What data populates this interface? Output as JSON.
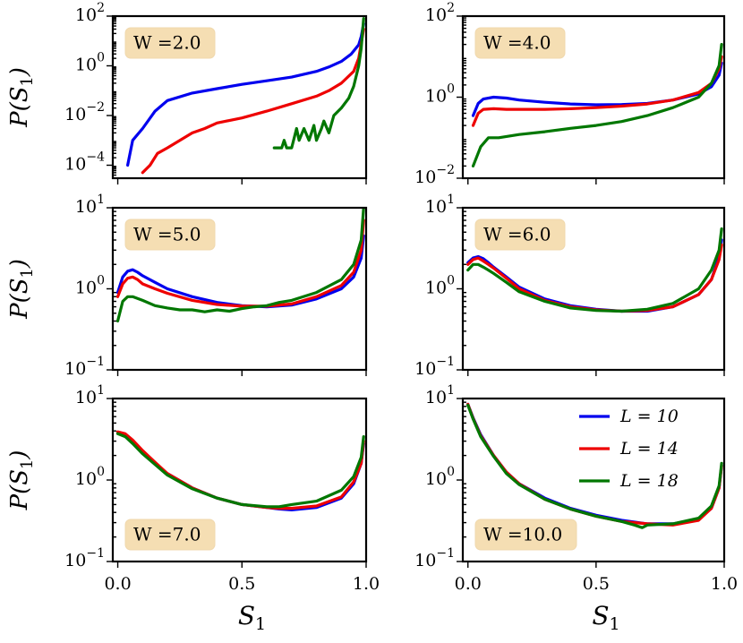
{
  "chart_data": [
    {
      "type": "line",
      "yscale": "log",
      "ylim": [
        3e-05,
        100
      ],
      "xlim": [
        -0.02,
        1.0
      ],
      "badge": "W =2.0",
      "badge_position": "top-left",
      "ylabel": "P(S1)",
      "xlabel": "",
      "yticks": [
        {
          "value": 100,
          "label": "10^2"
        },
        {
          "value": 1,
          "label": "10^0"
        },
        {
          "value": 0.01,
          "label": "10^-2"
        },
        {
          "value": 0.0001,
          "label": "10^-4"
        }
      ],
      "xticks": [],
      "series": [
        {
          "name": "L = 10",
          "x": [
            0.04,
            0.06,
            0.1,
            0.15,
            0.2,
            0.3,
            0.4,
            0.5,
            0.6,
            0.7,
            0.8,
            0.85,
            0.9,
            0.94,
            0.97,
            0.98,
            0.99
          ],
          "y": [
            0.0001,
            0.001,
            0.003,
            0.015,
            0.04,
            0.08,
            0.12,
            0.18,
            0.25,
            0.35,
            0.6,
            0.9,
            1.5,
            3,
            7,
            15,
            50
          ]
        },
        {
          "name": "L = 14",
          "x": [
            0.1,
            0.13,
            0.16,
            0.2,
            0.25,
            0.3,
            0.35,
            0.4,
            0.5,
            0.6,
            0.7,
            0.8,
            0.85,
            0.9,
            0.95,
            0.97,
            0.99
          ],
          "y": [
            5e-05,
            0.0001,
            0.0003,
            0.0005,
            0.001,
            0.002,
            0.003,
            0.005,
            0.008,
            0.015,
            0.03,
            0.06,
            0.1,
            0.2,
            0.6,
            2,
            30
          ]
        },
        {
          "name": "L = 18",
          "x": [
            0.63,
            0.66,
            0.67,
            0.68,
            0.7,
            0.72,
            0.73,
            0.75,
            0.77,
            0.79,
            0.8,
            0.82,
            0.83,
            0.85,
            0.87,
            0.9,
            0.93,
            0.95,
            0.97,
            0.98,
            0.99
          ],
          "y": [
            0.0005,
            0.0005,
            0.001,
            0.0005,
            0.0005,
            0.003,
            0.001,
            0.003,
            0.001,
            0.004,
            0.001,
            0.003,
            0.006,
            0.002,
            0.01,
            0.02,
            0.05,
            0.15,
            1.0,
            5,
            80
          ]
        }
      ]
    },
    {
      "type": "line",
      "yscale": "log",
      "ylim": [
        0.01,
        100
      ],
      "xlim": [
        -0.02,
        1.0
      ],
      "badge": "W =4.0",
      "badge_position": "top-left",
      "ylabel": "",
      "xlabel": "",
      "yticks": [
        {
          "value": 100,
          "label": "10^2"
        },
        {
          "value": 1,
          "label": "10^0"
        },
        {
          "value": 0.01,
          "label": "10^-2"
        }
      ],
      "xticks": [],
      "series": [
        {
          "name": "L = 10",
          "x": [
            0.02,
            0.04,
            0.06,
            0.1,
            0.15,
            0.2,
            0.3,
            0.4,
            0.5,
            0.6,
            0.7,
            0.8,
            0.9,
            0.95,
            0.98,
            0.99
          ],
          "y": [
            0.35,
            0.7,
            0.9,
            1.0,
            0.95,
            0.85,
            0.75,
            0.68,
            0.65,
            0.66,
            0.7,
            0.85,
            1.2,
            1.8,
            3.5,
            7
          ]
        },
        {
          "name": "L = 14",
          "x": [
            0.02,
            0.04,
            0.06,
            0.1,
            0.15,
            0.2,
            0.3,
            0.4,
            0.5,
            0.6,
            0.7,
            0.8,
            0.9,
            0.95,
            0.98,
            0.99
          ],
          "y": [
            0.2,
            0.4,
            0.5,
            0.52,
            0.5,
            0.5,
            0.5,
            0.52,
            0.55,
            0.6,
            0.68,
            0.85,
            1.3,
            2.2,
            5,
            10
          ]
        },
        {
          "name": "L = 18",
          "x": [
            0.02,
            0.05,
            0.08,
            0.12,
            0.2,
            0.3,
            0.4,
            0.5,
            0.6,
            0.7,
            0.8,
            0.9,
            0.95,
            0.98,
            0.99
          ],
          "y": [
            0.02,
            0.06,
            0.1,
            0.1,
            0.12,
            0.14,
            0.17,
            0.2,
            0.25,
            0.35,
            0.55,
            1.0,
            2.2,
            6,
            20
          ]
        }
      ]
    },
    {
      "type": "line",
      "yscale": "log",
      "ylim": [
        0.1,
        10
      ],
      "xlim": [
        -0.02,
        1.0
      ],
      "badge": "W =5.0",
      "badge_position": "top-left",
      "ylabel": "P(S1)",
      "xlabel": "",
      "yticks": [
        {
          "value": 10,
          "label": "10^1"
        },
        {
          "value": 1,
          "label": "10^0"
        },
        {
          "value": 0.1,
          "label": "10^-1"
        }
      ],
      "xticks": [],
      "series": [
        {
          "name": "L = 10",
          "x": [
            0.0,
            0.02,
            0.04,
            0.06,
            0.08,
            0.1,
            0.15,
            0.2,
            0.3,
            0.4,
            0.5,
            0.6,
            0.7,
            0.8,
            0.9,
            0.95,
            0.98,
            0.99
          ],
          "y": [
            0.9,
            1.4,
            1.65,
            1.72,
            1.6,
            1.45,
            1.2,
            1.0,
            0.8,
            0.68,
            0.62,
            0.6,
            0.63,
            0.75,
            1.0,
            1.4,
            2.4,
            4.5
          ]
        },
        {
          "name": "L = 14",
          "x": [
            0.0,
            0.02,
            0.04,
            0.06,
            0.08,
            0.1,
            0.15,
            0.2,
            0.3,
            0.4,
            0.5,
            0.6,
            0.7,
            0.8,
            0.9,
            0.95,
            0.98,
            0.99
          ],
          "y": [
            0.8,
            1.15,
            1.35,
            1.4,
            1.3,
            1.15,
            1.0,
            0.88,
            0.72,
            0.64,
            0.61,
            0.61,
            0.65,
            0.8,
            1.1,
            1.6,
            3.0,
            7
          ]
        },
        {
          "name": "L = 18",
          "x": [
            0.0,
            0.02,
            0.04,
            0.06,
            0.1,
            0.15,
            0.2,
            0.25,
            0.3,
            0.35,
            0.4,
            0.45,
            0.5,
            0.55,
            0.6,
            0.65,
            0.7,
            0.8,
            0.9,
            0.95,
            0.98,
            0.99
          ],
          "y": [
            0.4,
            0.7,
            0.8,
            0.8,
            0.72,
            0.62,
            0.58,
            0.55,
            0.55,
            0.52,
            0.55,
            0.53,
            0.57,
            0.6,
            0.62,
            0.68,
            0.72,
            0.9,
            1.3,
            2.0,
            4.0,
            10
          ]
        }
      ]
    },
    {
      "type": "line",
      "yscale": "log",
      "ylim": [
        0.1,
        10
      ],
      "xlim": [
        -0.02,
        1.0
      ],
      "badge": "W =6.0",
      "badge_position": "top-left",
      "ylabel": "",
      "xlabel": "",
      "yticks": [
        {
          "value": 10,
          "label": "10^1"
        },
        {
          "value": 1,
          "label": "10^0"
        },
        {
          "value": 0.1,
          "label": "10^-1"
        }
      ],
      "xticks": [],
      "series": [
        {
          "name": "L = 10",
          "x": [
            0.0,
            0.02,
            0.04,
            0.06,
            0.08,
            0.1,
            0.15,
            0.2,
            0.3,
            0.4,
            0.5,
            0.6,
            0.7,
            0.8,
            0.9,
            0.95,
            0.98,
            0.99
          ],
          "y": [
            2.1,
            2.4,
            2.5,
            2.35,
            2.1,
            1.85,
            1.4,
            1.05,
            0.75,
            0.62,
            0.56,
            0.53,
            0.53,
            0.6,
            0.85,
            1.3,
            2.5,
            4
          ]
        },
        {
          "name": "L = 14",
          "x": [
            0.0,
            0.02,
            0.04,
            0.06,
            0.08,
            0.1,
            0.15,
            0.2,
            0.3,
            0.4,
            0.5,
            0.6,
            0.7,
            0.8,
            0.9,
            0.95,
            0.98,
            0.99
          ],
          "y": [
            2.0,
            2.3,
            2.4,
            2.2,
            2.0,
            1.8,
            1.35,
            1.0,
            0.72,
            0.6,
            0.55,
            0.53,
            0.54,
            0.6,
            0.85,
            1.3,
            2.3,
            3.5
          ]
        },
        {
          "name": "L = 18",
          "x": [
            0.0,
            0.02,
            0.04,
            0.06,
            0.08,
            0.1,
            0.15,
            0.2,
            0.3,
            0.4,
            0.5,
            0.6,
            0.7,
            0.8,
            0.9,
            0.95,
            0.98,
            0.99
          ],
          "y": [
            1.7,
            2.0,
            2.0,
            1.85,
            1.7,
            1.55,
            1.2,
            0.92,
            0.7,
            0.58,
            0.54,
            0.53,
            0.56,
            0.66,
            1.0,
            1.7,
            3.0,
            5.5
          ]
        }
      ]
    },
    {
      "type": "line",
      "yscale": "log",
      "ylim": [
        0.1,
        10
      ],
      "xlim": [
        -0.02,
        1.0
      ],
      "badge": "W =7.0",
      "badge_position": "bottom-left",
      "ylabel": "P(S1)",
      "xlabel": "S1",
      "yticks": [
        {
          "value": 10,
          "label": "10^1"
        },
        {
          "value": 1,
          "label": "10^0"
        },
        {
          "value": 0.1,
          "label": "10^-1"
        }
      ],
      "xticks": [
        {
          "value": 0.0,
          "label": "0.0"
        },
        {
          "value": 0.5,
          "label": "0.5"
        },
        {
          "value": 1.0,
          "label": "1.0"
        }
      ],
      "series": [
        {
          "name": "L = 10",
          "x": [
            0.0,
            0.03,
            0.06,
            0.1,
            0.15,
            0.2,
            0.3,
            0.4,
            0.5,
            0.6,
            0.65,
            0.7,
            0.8,
            0.9,
            0.95,
            0.98,
            0.99
          ],
          "y": [
            3.8,
            3.6,
            3.0,
            2.2,
            1.6,
            1.2,
            0.8,
            0.6,
            0.5,
            0.46,
            0.44,
            0.43,
            0.46,
            0.6,
            0.9,
            1.6,
            2.8
          ]
        },
        {
          "name": "L = 14",
          "x": [
            0.0,
            0.03,
            0.06,
            0.1,
            0.15,
            0.2,
            0.3,
            0.4,
            0.5,
            0.6,
            0.65,
            0.7,
            0.8,
            0.9,
            0.95,
            0.98,
            0.99
          ],
          "y": [
            3.9,
            3.7,
            3.1,
            2.3,
            1.65,
            1.2,
            0.8,
            0.6,
            0.5,
            0.46,
            0.45,
            0.45,
            0.48,
            0.62,
            0.95,
            1.6,
            3.0
          ]
        },
        {
          "name": "L = 18",
          "x": [
            0.0,
            0.03,
            0.06,
            0.1,
            0.15,
            0.2,
            0.3,
            0.4,
            0.5,
            0.6,
            0.65,
            0.7,
            0.8,
            0.9,
            0.95,
            0.98,
            0.99
          ],
          "y": [
            3.7,
            3.4,
            2.8,
            2.1,
            1.55,
            1.15,
            0.78,
            0.6,
            0.5,
            0.47,
            0.47,
            0.5,
            0.55,
            0.75,
            1.1,
            1.9,
            3.4
          ]
        }
      ]
    },
    {
      "type": "line",
      "yscale": "log",
      "ylim": [
        0.1,
        10
      ],
      "xlim": [
        -0.02,
        1.0
      ],
      "badge": "W =10.0",
      "badge_position": "bottom-left",
      "ylabel": "",
      "xlabel": "S1",
      "yticks": [
        {
          "value": 10,
          "label": "10^1"
        },
        {
          "value": 1,
          "label": "10^0"
        },
        {
          "value": 0.1,
          "label": "10^-1"
        }
      ],
      "xticks": [
        {
          "value": 0.0,
          "label": "0.0"
        },
        {
          "value": 0.5,
          "label": "0.5"
        },
        {
          "value": 1.0,
          "label": "1.0"
        }
      ],
      "legend": {
        "position": "top-right",
        "entries": [
          "L = 10",
          "L = 14",
          "L = 18"
        ]
      },
      "series": [
        {
          "name": "L = 10",
          "x": [
            0.0,
            0.02,
            0.05,
            0.1,
            0.15,
            0.2,
            0.3,
            0.4,
            0.5,
            0.6,
            0.7,
            0.8,
            0.9,
            0.95,
            0.98,
            0.99
          ],
          "y": [
            8.5,
            5.8,
            3.6,
            2.0,
            1.25,
            0.9,
            0.6,
            0.45,
            0.37,
            0.32,
            0.29,
            0.29,
            0.33,
            0.45,
            0.8,
            1.5
          ]
        },
        {
          "name": "L = 14",
          "x": [
            0.0,
            0.02,
            0.05,
            0.1,
            0.15,
            0.2,
            0.3,
            0.4,
            0.5,
            0.6,
            0.7,
            0.8,
            0.9,
            0.95,
            0.98,
            0.99
          ],
          "y": [
            8.5,
            5.7,
            3.5,
            2.0,
            1.25,
            0.9,
            0.58,
            0.44,
            0.36,
            0.31,
            0.29,
            0.28,
            0.32,
            0.45,
            0.8,
            1.5
          ]
        },
        {
          "name": "L = 18",
          "x": [
            0.0,
            0.02,
            0.05,
            0.1,
            0.15,
            0.2,
            0.3,
            0.4,
            0.5,
            0.6,
            0.65,
            0.68,
            0.7,
            0.8,
            0.9,
            0.95,
            0.98,
            0.99
          ],
          "y": [
            8.3,
            5.6,
            3.4,
            1.95,
            1.2,
            0.88,
            0.58,
            0.44,
            0.36,
            0.31,
            0.28,
            0.26,
            0.28,
            0.29,
            0.34,
            0.48,
            0.85,
            1.6
          ]
        }
      ]
    }
  ],
  "series_colors": {
    "L = 10": "#0000ee",
    "L = 14": "#ee0000",
    "L = 18": "#007700"
  }
}
